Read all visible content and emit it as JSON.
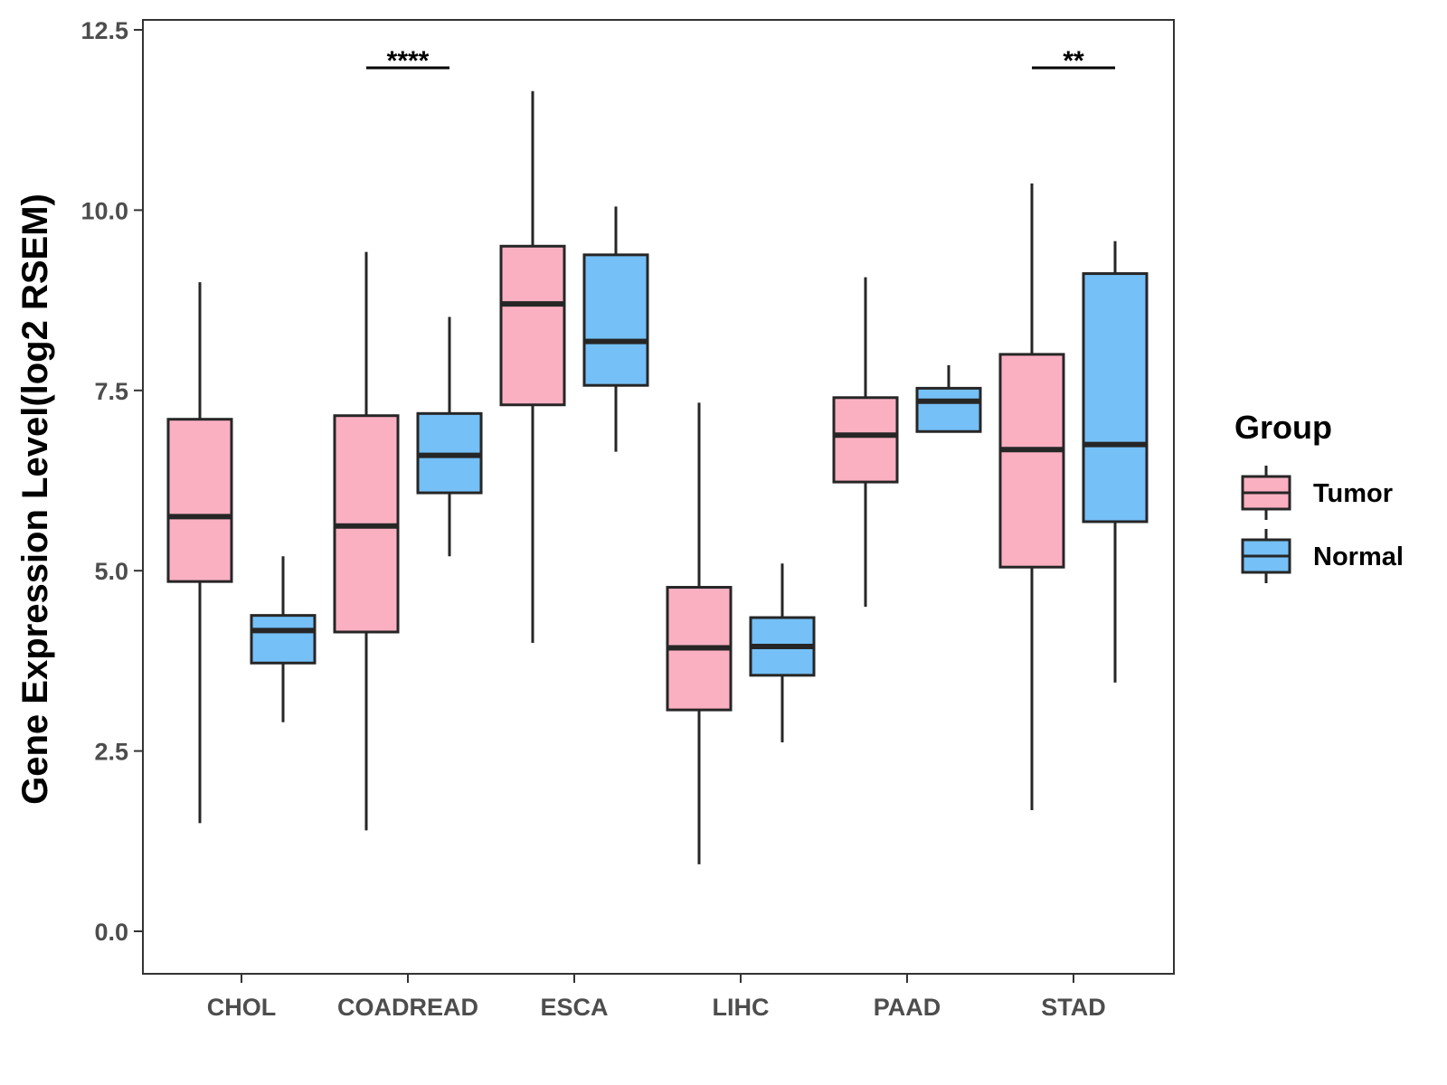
{
  "chart_data": {
    "type": "boxplot",
    "title": "",
    "xlabel": "",
    "ylabel": "Gene Expression Level(log2 RSEM)",
    "ylim": [
      -0.6,
      12.6
    ],
    "yticks": [
      0.0,
      2.5,
      5.0,
      7.5,
      10.0,
      12.5
    ],
    "ytick_labels": [
      "0.0",
      "2.5",
      "5.0",
      "7.5",
      "10.0",
      "12.5"
    ],
    "categories": [
      "CHOL",
      "COADREAD",
      "ESCA",
      "LIHC",
      "PAAD",
      "STAD"
    ],
    "legend": {
      "title": "Group",
      "position": "right"
    },
    "series": [
      {
        "name": "Tumor",
        "color": "#FBB0C2",
        "boxes": [
          {
            "min": 1.5,
            "q1": 4.85,
            "median": 5.75,
            "q3": 7.1,
            "max": 9.0
          },
          {
            "min": 1.4,
            "q1": 4.15,
            "median": 5.62,
            "q3": 7.15,
            "max": 9.42
          },
          {
            "min": 4.0,
            "q1": 7.3,
            "median": 8.7,
            "q3": 9.5,
            "max": 11.65
          },
          {
            "min": 0.93,
            "q1": 3.07,
            "median": 3.93,
            "q3": 4.77,
            "max": 7.33
          },
          {
            "min": 4.5,
            "q1": 6.23,
            "median": 6.88,
            "q3": 7.4,
            "max": 9.07
          },
          {
            "min": 1.68,
            "q1": 5.05,
            "median": 6.68,
            "q3": 8.0,
            "max": 10.37
          }
        ]
      },
      {
        "name": "Normal",
        "color": "#75C0F7",
        "boxes": [
          {
            "min": 2.9,
            "q1": 3.72,
            "median": 4.17,
            "q3": 4.38,
            "max": 5.2
          },
          {
            "min": 5.2,
            "q1": 6.08,
            "median": 6.6,
            "q3": 7.18,
            "max": 8.52
          },
          {
            "min": 6.65,
            "q1": 7.57,
            "median": 8.18,
            "q3": 9.38,
            "max": 10.05
          },
          {
            "min": 2.62,
            "q1": 3.55,
            "median": 3.95,
            "q3": 4.35,
            "max": 5.1
          },
          {
            "min": 6.93,
            "q1": 6.93,
            "median": 7.35,
            "q3": 7.53,
            "max": 7.85
          },
          {
            "min": 3.45,
            "q1": 5.68,
            "median": 6.75,
            "q3": 9.12,
            "max": 9.57
          }
        ]
      }
    ],
    "significance": [
      {
        "category": "COADREAD",
        "label": "****"
      },
      {
        "category": "STAD",
        "label": "**"
      }
    ]
  }
}
